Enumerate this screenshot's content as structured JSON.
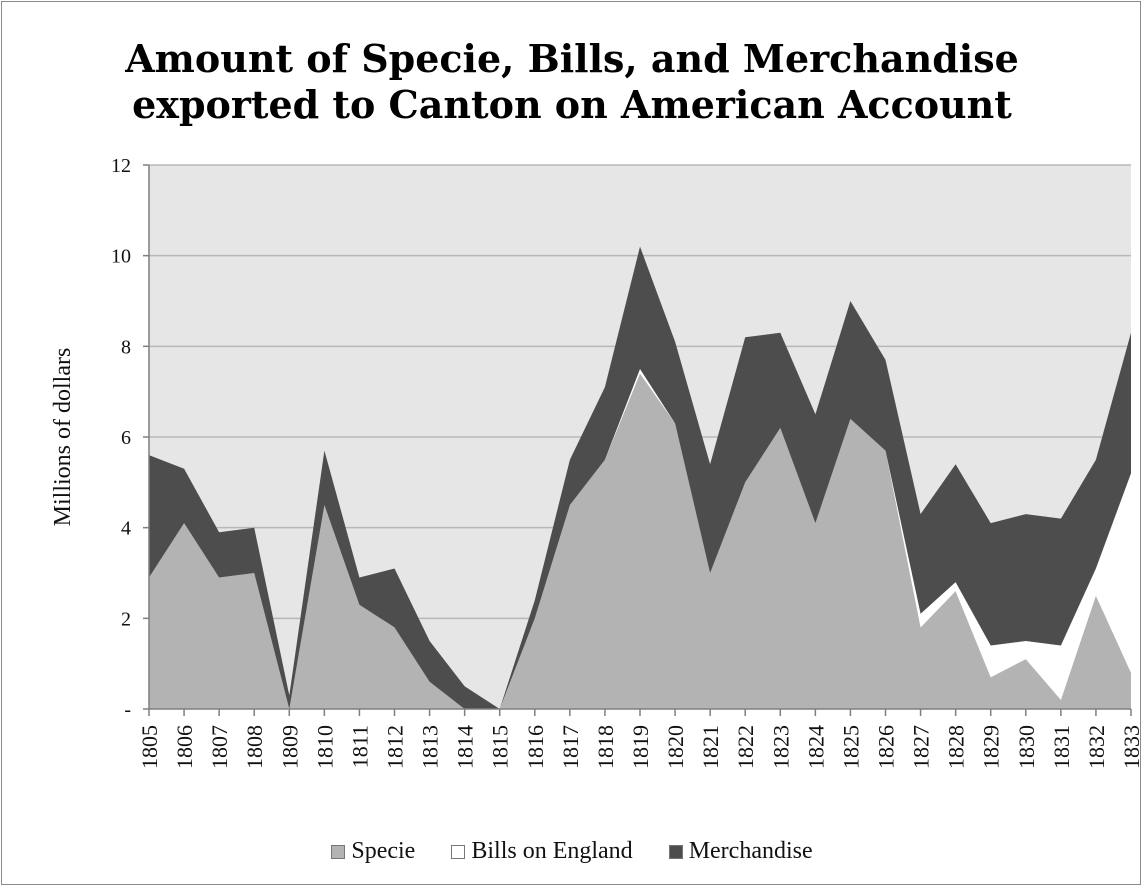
{
  "chart_data": {
    "type": "area",
    "stacked": true,
    "title_lines": [
      "Amount of Specie, Bills, and Merchandise",
      "exported to Canton on American Account"
    ],
    "xlabel": "",
    "ylabel": "Millions of dollars",
    "ylim": [
      0,
      12
    ],
    "y_ticks": [
      0,
      2,
      4,
      6,
      8,
      10,
      12
    ],
    "y_tick_labels": [
      "-",
      "2",
      "4",
      "6",
      "8",
      "10",
      "12"
    ],
    "grid": true,
    "legend_position": "bottom",
    "categories": [
      "1805",
      "1806",
      "1807",
      "1808",
      "1809",
      "1810",
      "1811",
      "1812",
      "1813",
      "1814",
      "1815",
      "1816",
      "1817",
      "1818",
      "1819",
      "1820",
      "1821",
      "1822",
      "1823",
      "1824",
      "1825",
      "1826",
      "1827",
      "1828",
      "1829",
      "1830",
      "1831",
      "1832",
      "1833"
    ],
    "series": [
      {
        "name": "Specie",
        "color": "#b3b3b3",
        "values": [
          2.9,
          4.1,
          2.9,
          3.0,
          0.0,
          4.5,
          2.3,
          1.8,
          0.6,
          0.0,
          0.0,
          2.0,
          4.5,
          5.5,
          7.4,
          6.3,
          3.0,
          5.0,
          6.2,
          4.1,
          6.4,
          5.7,
          1.8,
          2.6,
          0.7,
          1.1,
          0.2,
          2.5,
          0.8
        ]
      },
      {
        "name": "Bills on England",
        "color": "#ffffff",
        "values": [
          0,
          0,
          0,
          0,
          0,
          0,
          0,
          0,
          0,
          0,
          0,
          0,
          0,
          0,
          0.1,
          0,
          0,
          0,
          0,
          0,
          0,
          0,
          0.3,
          0.2,
          0.7,
          0.4,
          1.2,
          0.6,
          4.4
        ]
      },
      {
        "name": "Merchandise",
        "color": "#4d4d4d",
        "values": [
          2.7,
          1.2,
          1.0,
          1.0,
          0.3,
          1.2,
          0.6,
          1.3,
          0.9,
          0.5,
          0.0,
          0.4,
          1.0,
          1.6,
          2.7,
          1.8,
          2.4,
          3.2,
          2.1,
          2.4,
          2.6,
          2.0,
          2.2,
          2.6,
          2.7,
          2.8,
          2.8,
          2.4,
          3.1
        ]
      }
    ]
  },
  "colors": {
    "plot_background": "#e6e6e6",
    "gridline": "#b8b8b8",
    "axis": "#7f7f7f"
  }
}
